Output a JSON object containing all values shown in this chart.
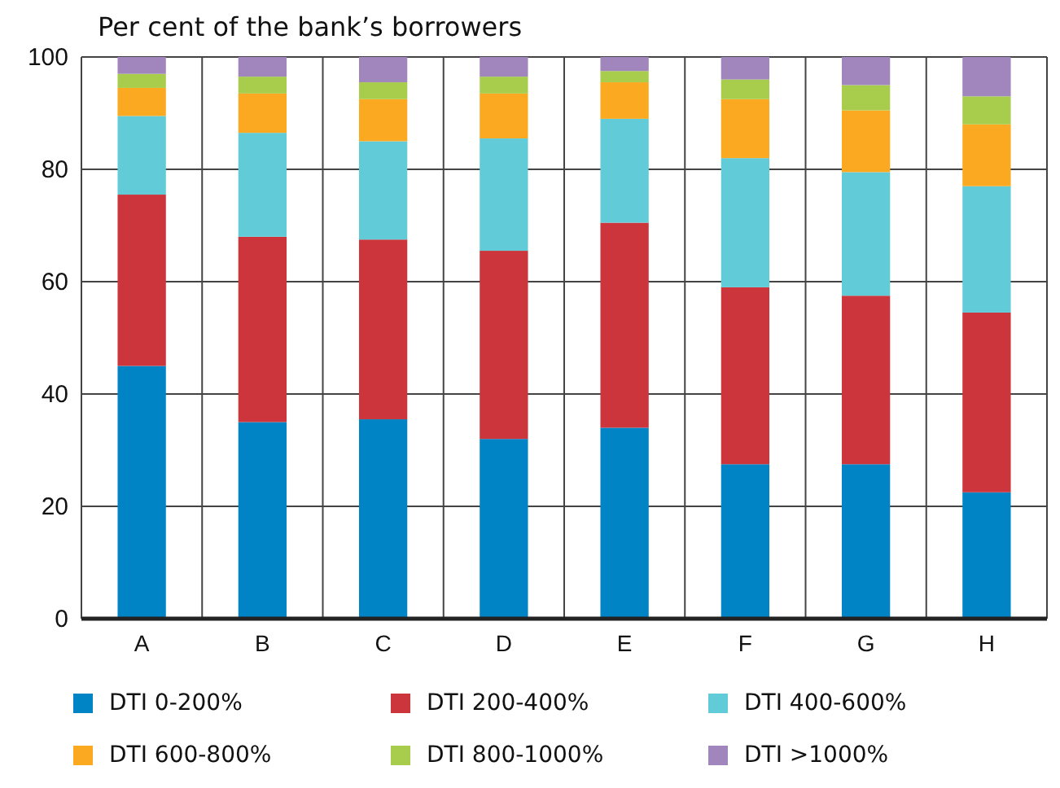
{
  "chart_data": {
    "type": "bar",
    "stacked": true,
    "ylabel": "Per cent of the bank’s borrowers",
    "categories": [
      "A",
      "B",
      "C",
      "D",
      "E",
      "F",
      "G",
      "H"
    ],
    "series": [
      {
        "name": "DTI 0-200%",
        "color": "#0084c5",
        "values": [
          45,
          35,
          35.5,
          32,
          34,
          27.5,
          27.5,
          22.5
        ]
      },
      {
        "name": "DTI 200-400%",
        "color": "#cc353b",
        "values": [
          30.5,
          33,
          32,
          33.5,
          36.5,
          31.5,
          30,
          32
        ]
      },
      {
        "name": "DTI 400-600%",
        "color": "#62cbd8",
        "values": [
          14,
          18.5,
          17.5,
          20,
          18.5,
          23,
          22,
          22.5
        ]
      },
      {
        "name": "DTI 600-800%",
        "color": "#faa921",
        "values": [
          5,
          7,
          7.5,
          8,
          6.5,
          10.5,
          11,
          11
        ]
      },
      {
        "name": "DTI 800-1000%",
        "color": "#a8cd4c",
        "values": [
          2.5,
          3,
          3,
          3,
          2,
          3.5,
          4.5,
          5
        ]
      },
      {
        "name": "DTI >1000%",
        "color": "#a185bd",
        "values": [
          3,
          3.5,
          4.5,
          3.5,
          2.5,
          4,
          5,
          7
        ]
      }
    ],
    "ylim": [
      0,
      100
    ],
    "yticks": [
      0,
      20,
      40,
      60,
      80,
      100
    ],
    "grid": true,
    "legend": "bottom"
  }
}
